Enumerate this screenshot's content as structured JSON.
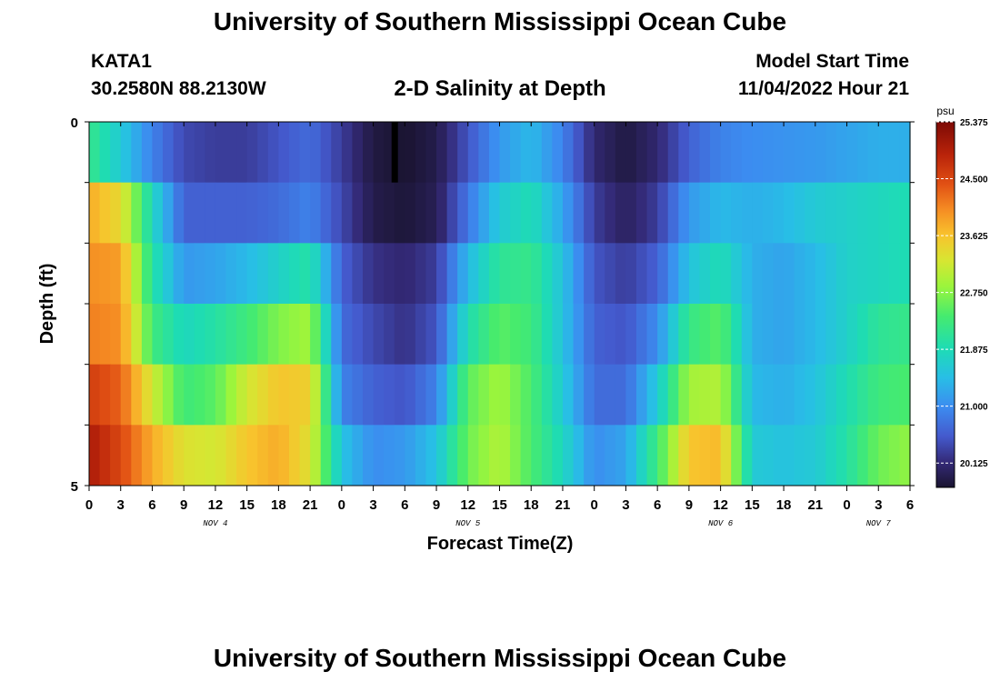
{
  "page": {
    "title_top": "University of Southern Mississippi Ocean Cube",
    "title_bottom": "University of Southern Mississippi Ocean Cube",
    "station_name": "KATA1",
    "station_coords": "30.2580N  88.2130W",
    "plot_title": "2-D Salinity at Depth",
    "model_start_label": "Model Start Time",
    "model_start_value": "11/04/2022 Hour 21"
  },
  "chart_data": {
    "type": "heatmap",
    "title": "2-D Salinity at Depth",
    "xlabel": "Forecast Time(Z)",
    "ylabel": "Depth (ft)",
    "x_tick_labels": [
      "0",
      "3",
      "6",
      "9",
      "12",
      "15",
      "18",
      "21",
      "0",
      "3",
      "6",
      "9",
      "12",
      "15",
      "18",
      "21",
      "0",
      "3",
      "6",
      "9",
      "12",
      "15",
      "18",
      "21",
      "0",
      "3",
      "6"
    ],
    "x_hours": [
      0,
      3,
      6,
      9,
      12,
      15,
      18,
      21,
      24,
      27,
      30,
      33,
      36,
      39,
      42,
      45,
      48,
      51,
      54,
      57,
      60,
      63,
      66,
      69,
      72,
      75,
      78
    ],
    "date_labels": [
      {
        "hour": 12,
        "text": "NOV 4"
      },
      {
        "hour": 36,
        "text": "NOV 5"
      },
      {
        "hour": 60,
        "text": "NOV 6"
      },
      {
        "hour": 75,
        "text": "NOV 7"
      }
    ],
    "y_tick_labels": [
      "0",
      "5"
    ],
    "ylim": [
      0,
      5
    ],
    "xlim": [
      0,
      78
    ],
    "colorbar": {
      "unit": "psu",
      "min": 19.75,
      "max": 25.375,
      "tick_labels": [
        "25.375",
        "24.500",
        "23.625",
        "22.750",
        "21.875",
        "21.000",
        "20.125"
      ],
      "tick_values": [
        25.375,
        24.5,
        23.625,
        22.75,
        21.875,
        21.0,
        20.125
      ]
    },
    "cell_values": {
      "x_hours": [
        0,
        3,
        6,
        9,
        12,
        15,
        18,
        21,
        24,
        27,
        30,
        33,
        36,
        39,
        42,
        45,
        48,
        51,
        54,
        57,
        60,
        63,
        66,
        69,
        72,
        75,
        78
      ],
      "depth_layers": [
        {
          "depth": 0,
          "values": [
            22.2,
            21.6,
            20.9,
            20.4,
            20.3,
            20.3,
            20.5,
            20.7,
            20.3,
            19.85,
            19.75,
            19.9,
            20.5,
            21.1,
            21.4,
            20.9,
            20.1,
            19.85,
            20.1,
            20.6,
            20.9,
            21.0,
            21.05,
            21.1,
            21.2,
            21.3,
            21.3
          ]
        },
        {
          "depth": 1,
          "values": [
            23.8,
            23.4,
            21.8,
            20.6,
            20.6,
            20.6,
            20.7,
            20.9,
            20.4,
            19.9,
            19.8,
            19.95,
            20.8,
            21.6,
            21.9,
            21.2,
            20.3,
            20.0,
            20.3,
            21.1,
            21.4,
            21.3,
            21.4,
            21.6,
            21.7,
            21.8,
            21.9
          ]
        },
        {
          "depth": 2,
          "values": [
            24.0,
            23.9,
            22.0,
            21.1,
            21.2,
            21.4,
            21.7,
            22.0,
            20.6,
            20.2,
            20.1,
            20.3,
            21.4,
            22.1,
            22.2,
            21.5,
            20.5,
            20.3,
            20.6,
            21.5,
            21.9,
            21.3,
            21.2,
            21.4,
            21.7,
            21.8,
            21.9
          ]
        },
        {
          "depth": 3,
          "values": [
            24.1,
            24.0,
            22.3,
            21.8,
            22.0,
            22.3,
            22.7,
            22.9,
            20.7,
            20.4,
            20.2,
            20.5,
            21.9,
            22.5,
            22.3,
            21.5,
            20.6,
            20.5,
            21.0,
            22.2,
            22.5,
            21.3,
            21.2,
            21.4,
            21.7,
            22.1,
            22.2
          ]
        },
        {
          "depth": 4,
          "values": [
            24.6,
            24.3,
            23.2,
            22.3,
            22.5,
            23.2,
            23.6,
            23.5,
            20.9,
            20.6,
            20.5,
            20.9,
            22.5,
            22.9,
            22.4,
            21.6,
            20.7,
            20.7,
            21.6,
            22.9,
            23.0,
            21.4,
            21.3,
            21.5,
            21.9,
            22.3,
            22.4
          ]
        },
        {
          "depth": 5,
          "values": [
            25.0,
            24.5,
            23.8,
            23.3,
            23.2,
            23.6,
            23.8,
            23.3,
            21.5,
            21.0,
            21.1,
            21.5,
            22.6,
            23.0,
            22.4,
            21.8,
            21.0,
            21.2,
            22.3,
            23.6,
            23.7,
            21.6,
            21.5,
            21.6,
            22.0,
            22.6,
            22.8
          ]
        }
      ]
    },
    "grid": false,
    "legend": "colorbar-right"
  }
}
